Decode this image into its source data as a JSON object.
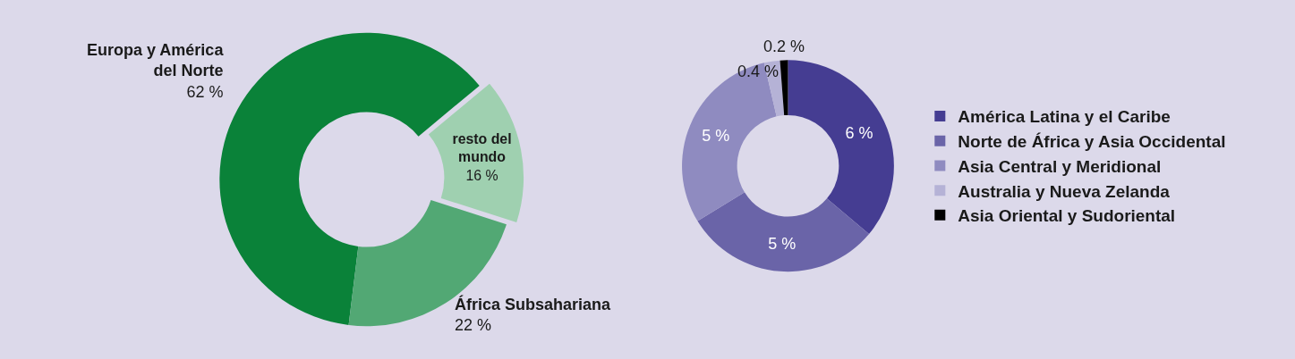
{
  "chart_data": [
    {
      "type": "donut",
      "categories": [
        "Europa y América del Norte",
        "resto del mundo",
        "África Subsahariana"
      ],
      "values": [
        62,
        16,
        22
      ],
      "colors": [
        "#0a8239",
        "#9fd0b0",
        "#52a874"
      ],
      "value_labels": [
        "62 %",
        "16 %",
        "22 %"
      ],
      "legend": false
    },
    {
      "type": "donut",
      "categories": [
        "América Latina y el Caribe",
        "Norte de África y Asia Occidental",
        "Asia Central y Meridional",
        "Australia y Nueva Zelanda",
        "Asia Oriental y Sudoriental"
      ],
      "values": [
        6,
        5,
        5,
        0.4,
        0.2
      ],
      "colors": [
        "#453d92",
        "#6a64a8",
        "#8f8bc0",
        "#b5b2d6",
        "#000000"
      ],
      "value_labels": [
        "6 %",
        "5 %",
        "5 %",
        "0.4 %",
        "0.2 %"
      ],
      "legend": "right"
    }
  ]
}
